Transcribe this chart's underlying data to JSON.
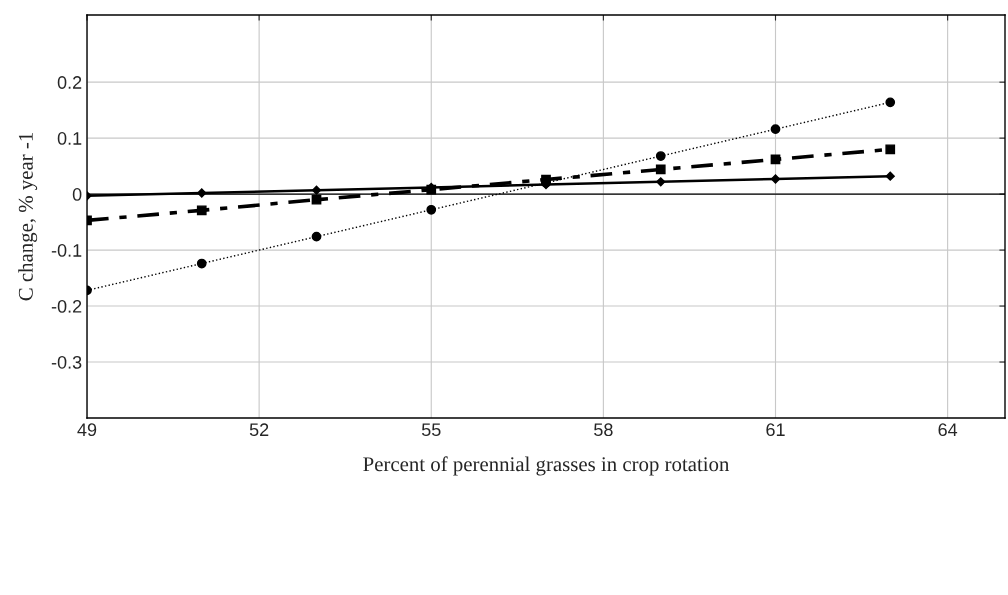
{
  "chart_data": {
    "type": "line",
    "xlabel": "Percent of perennial grasses in crop rotation",
    "ylabel": "C change, % year -1",
    "x": [
      49,
      51,
      53,
      55,
      57,
      59,
      61,
      63
    ],
    "series": [
      {
        "color": "#000000",
        "marker": "diamond",
        "line_style": "solid",
        "values": [
          -0.003,
          0.002,
          0.007,
          0.012,
          0.017,
          0.022,
          0.027,
          0.032
        ]
      },
      {
        "color": "#000000",
        "marker": "square",
        "line_style": "dashed",
        "values": [
          -0.047,
          -0.029,
          -0.01,
          0.008,
          0.026,
          0.044,
          0.062,
          0.08
        ]
      },
      {
        "color": "#000000",
        "marker": "circle",
        "line_style": "dotted",
        "values": [
          -0.172,
          -0.124,
          -0.076,
          -0.028,
          0.02,
          0.068,
          0.116,
          0.164
        ]
      }
    ],
    "xlim": [
      49,
      65
    ],
    "xticks": [
      49,
      52,
      55,
      58,
      61,
      64
    ],
    "ylim": [
      -0.4,
      0.32
    ],
    "yticks": [
      {
        "value": -0.3,
        "label": "-0.3"
      },
      {
        "value": -0.2,
        "label": "-0.2"
      },
      {
        "value": -0.1,
        "label": "-0.1"
      },
      0,
      0.1,
      0.2
    ],
    "ref_lines": [
      {
        "axis": "y",
        "value": 0,
        "color": "#000000"
      }
    ],
    "grid": true,
    "legend": false
  }
}
